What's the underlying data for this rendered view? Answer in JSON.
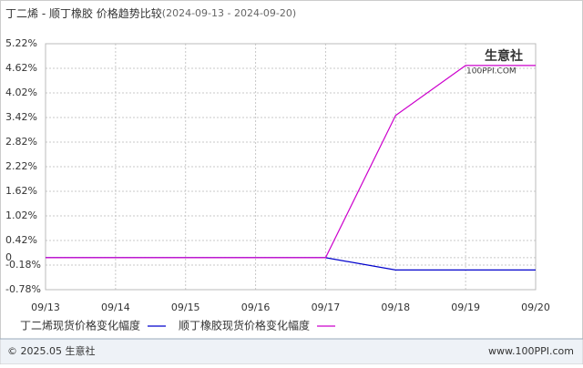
{
  "chart_data": {
    "type": "line",
    "title": "丁二烯 - 顺丁橡胶 价格趋势比较",
    "subtitle": "(2024-09-13 - 2024-09-20)",
    "categories": [
      "09/13",
      "09/14",
      "09/15",
      "09/16",
      "09/17",
      "09/18",
      "09/19",
      "09/20"
    ],
    "series": [
      {
        "name": "丁二烯现货价格变化幅度",
        "color": "#0000cc",
        "values": [
          0,
          0,
          0,
          0,
          0,
          -0.3,
          -0.3,
          -0.3
        ]
      },
      {
        "name": "顺丁橡胶现货价格变化幅度",
        "color": "#cc00cc",
        "values": [
          0,
          0,
          0,
          0,
          0,
          3.47,
          4.69,
          4.69
        ]
      }
    ],
    "ylim": [
      -0.78,
      5.22
    ],
    "yticks": [
      {
        "value": -0.78,
        "label": "-0.78%"
      },
      {
        "value": -0.18,
        "label": "-0.18%"
      },
      0,
      {
        "value": 0.42,
        "label": "0.42%"
      },
      {
        "value": 1.02,
        "label": "1.02%"
      },
      {
        "value": 1.62,
        "label": "1.62%"
      },
      {
        "value": 2.22,
        "label": "2.22%"
      },
      {
        "value": 2.82,
        "label": "2.82%"
      },
      {
        "value": 3.42,
        "label": "3.42%"
      },
      {
        "value": 4.02,
        "label": "4.02%"
      },
      {
        "value": 4.62,
        "label": "4.62%"
      },
      {
        "value": 5.22,
        "label": "5.22%"
      }
    ],
    "grid": true,
    "watermark": [
      "生意社",
      "100PPI.COM"
    ],
    "footer": {
      "left": "© 2025.05 生意社",
      "right": "www.100PPI.com"
    }
  }
}
